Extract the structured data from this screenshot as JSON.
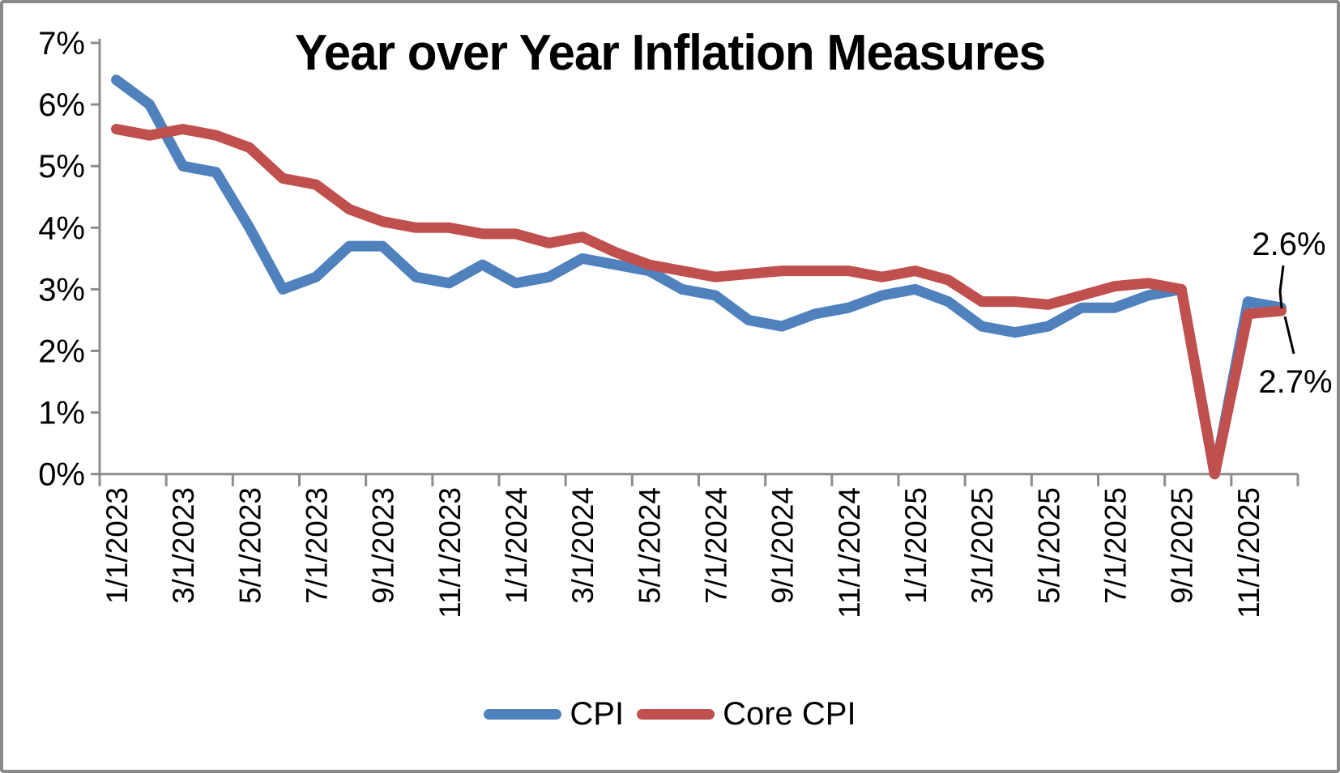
{
  "chart_data": {
    "type": "line",
    "title": "Year over Year Inflation Measures",
    "x": [
      "1/1/2023",
      "2/1/2023",
      "3/1/2023",
      "4/1/2023",
      "5/1/2023",
      "6/1/2023",
      "7/1/2023",
      "8/1/2023",
      "9/1/2023",
      "10/1/2023",
      "11/1/2023",
      "12/1/2023",
      "1/1/2024",
      "2/1/2024",
      "3/1/2024",
      "4/1/2024",
      "5/1/2024",
      "6/1/2024",
      "7/1/2024",
      "8/1/2024",
      "9/1/2024",
      "10/1/2024",
      "11/1/2024",
      "12/1/2024",
      "1/1/2025",
      "2/1/2025",
      "3/1/2025",
      "4/1/2025",
      "5/1/2025",
      "6/1/2025",
      "7/1/2025",
      "8/1/2025",
      "9/1/2025",
      "10/1/2025",
      "11/1/2025",
      "12/1/2025"
    ],
    "x_tick_labels": [
      "1/1/2023",
      "3/1/2023",
      "5/1/2023",
      "7/1/2023",
      "9/1/2023",
      "11/1/2023",
      "1/1/2024",
      "3/1/2024",
      "5/1/2024",
      "7/1/2024",
      "9/1/2024",
      "11/1/2024",
      "1/1/2025",
      "3/1/2025",
      "5/1/2025",
      "7/1/2025",
      "9/1/2025",
      "11/1/2025"
    ],
    "series": [
      {
        "name": "CPI",
        "color": "#4F81BD",
        "values": [
          6.4,
          6.0,
          5.0,
          4.9,
          4.0,
          3.0,
          3.2,
          3.7,
          3.7,
          3.2,
          3.1,
          3.4,
          3.1,
          3.2,
          3.5,
          3.4,
          3.3,
          3.0,
          2.9,
          2.5,
          2.4,
          2.6,
          2.7,
          2.9,
          3.0,
          2.8,
          2.4,
          2.3,
          2.4,
          2.7,
          2.7,
          2.9,
          3.0,
          0.0,
          2.8,
          2.7
        ]
      },
      {
        "name": "Core CPI",
        "color": "#C0504D",
        "values": [
          5.6,
          5.5,
          5.6,
          5.5,
          5.3,
          4.8,
          4.7,
          4.3,
          4.1,
          4.0,
          4.0,
          3.9,
          3.9,
          3.75,
          3.85,
          3.6,
          3.4,
          3.3,
          3.2,
          3.25,
          3.3,
          3.3,
          3.3,
          3.2,
          3.3,
          3.15,
          2.8,
          2.8,
          2.75,
          2.9,
          3.05,
          3.1,
          3.0,
          0.0,
          2.6,
          2.65
        ]
      }
    ],
    "ylim": [
      0,
      7
    ],
    "y_tick_labels": [
      "0%",
      "1%",
      "2%",
      "3%",
      "4%",
      "5%",
      "6%",
      "7%"
    ],
    "grid": false,
    "legend_position": "bottom",
    "annotations": [
      {
        "text": "2.6%",
        "series": "Core CPI",
        "point": "12/1/2025"
      },
      {
        "text": "2.7%",
        "series": "CPI",
        "point": "12/1/2025"
      }
    ]
  },
  "colors": {
    "axis": "#8c8c8c",
    "border": "#8a8a8a",
    "leader_line": "#000000",
    "text": "#000000"
  }
}
